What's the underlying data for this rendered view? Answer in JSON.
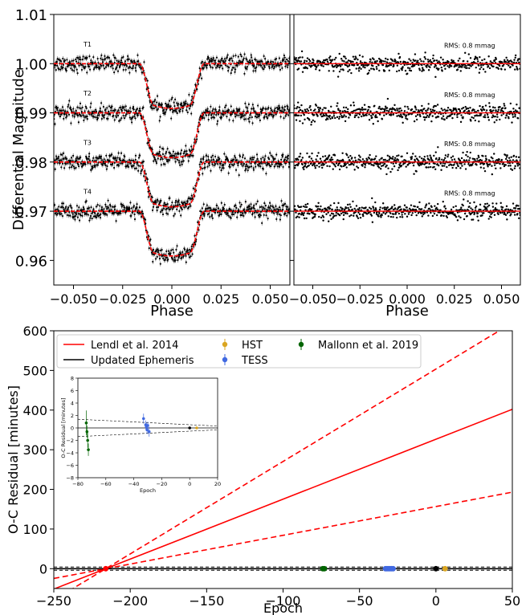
{
  "chart_data": [
    {
      "id": "lc",
      "type": "scatter",
      "xlabel": "Phase",
      "ylabel": "Differential Magnitude",
      "xlim": [
        -0.06,
        0.06
      ],
      "ylim": [
        0.955,
        1.01
      ],
      "x_ticks": [
        -0.05,
        -0.025,
        0.0,
        0.025,
        0.05
      ],
      "x_tick_labels": [
        "−0.050",
        "−0.025",
        "0.000",
        "0.025",
        "0.050"
      ],
      "y_ticks": [
        0.96,
        0.97,
        0.98,
        0.99,
        1.0,
        1.01
      ],
      "y_tick_labels": [
        "0.96",
        "0.97",
        "0.98",
        "0.99",
        "1.00",
        "1.01"
      ],
      "transit": {
        "t1": -0.0165,
        "t2": -0.009,
        "t3": 0.009,
        "t4": 0.0165,
        "depth": 0.0085,
        "noise": 0.0008
      },
      "series": [
        {
          "name": "T1",
          "offset": 1.0
        },
        {
          "name": "T2",
          "offset": 0.99
        },
        {
          "name": "T3",
          "offset": 0.98
        },
        {
          "name": "T4",
          "offset": 0.97
        }
      ],
      "point_color": "#000000",
      "model_color": "#ff0000"
    },
    {
      "id": "resid",
      "type": "scatter",
      "xlabel": "Phase",
      "xlim": [
        -0.06,
        0.06
      ],
      "ylim": [
        0.955,
        1.01
      ],
      "x_ticks": [
        -0.05,
        -0.025,
        0.0,
        0.025,
        0.05
      ],
      "x_tick_labels": [
        "−0.050",
        "−0.025",
        "0.000",
        "0.025",
        "0.050"
      ],
      "series": [
        {
          "name": "RMS: 0.8 mmag",
          "offset": 1.0
        },
        {
          "name": "RMS: 0.8 mmag",
          "offset": 0.99
        },
        {
          "name": "RMS: 0.8 mmag",
          "offset": 0.98
        },
        {
          "name": "RMS: 0.8 mmag",
          "offset": 0.97
        }
      ]
    },
    {
      "id": "oc",
      "type": "line",
      "xlabel": "Epoch",
      "ylabel": "O-C Residual [minutes]",
      "xlim": [
        -250,
        50
      ],
      "ylim": [
        -50,
        600
      ],
      "x_ticks": [
        -250,
        -200,
        -150,
        -100,
        -50,
        0,
        50
      ],
      "x_tick_labels": [
        "−250",
        "−200",
        "−150",
        "−100",
        "−50",
        "0",
        "50"
      ],
      "y_ticks": [
        0,
        100,
        200,
        300,
        400,
        500,
        600
      ],
      "y_tick_labels": [
        "0",
        "100",
        "200",
        "300",
        "400",
        "500",
        "600"
      ],
      "lines": [
        {
          "name": "Lendl et al. 2014",
          "color": "#ff0000",
          "style": "solid",
          "points": [
            [
              -216,
              0
            ],
            [
              50,
              402
            ]
          ]
        },
        {
          "name": "",
          "color": "#ff0000",
          "style": "dashed",
          "points": [
            [
              -216,
              0
            ],
            [
              50,
              620
            ]
          ]
        },
        {
          "name": "",
          "color": "#ff0000",
          "style": "dashed",
          "points": [
            [
              -216,
              0
            ],
            [
              50,
              193
            ]
          ]
        },
        {
          "name": "Updated Ephemeris",
          "color": "#000000",
          "style": "solid",
          "points": [
            [
              -250,
              0
            ],
            [
              50,
              0
            ]
          ]
        }
      ],
      "points": [
        {
          "name": "HST",
          "color": "#daa520",
          "x": [
            6
          ],
          "y": [
            0
          ]
        },
        {
          "name": "TESS",
          "color": "#4169e1",
          "x": [
            -33,
            -32,
            -31,
            -30,
            -29,
            -28
          ],
          "y": [
            0,
            0,
            0,
            0,
            0,
            0
          ]
        },
        {
          "name": "Mallonn et al. 2019",
          "color": "#006400",
          "x": [
            -74,
            -73
          ],
          "y": [
            0,
            0
          ]
        },
        {
          "name": "",
          "color": "#000000",
          "x": [
            0
          ],
          "y": [
            0
          ]
        },
        {
          "name": "",
          "color": "#ff0000",
          "x": [
            -216
          ],
          "y": [
            0
          ]
        }
      ],
      "legend": {
        "placement": "top-left",
        "entries": [
          {
            "label": "Lendl et al. 2014",
            "kind": "line",
            "color": "#ff0000"
          },
          {
            "label": "Updated Ephemeris",
            "kind": "line",
            "color": "#000000"
          },
          {
            "label": "HST",
            "kind": "marker",
            "color": "#daa520"
          },
          {
            "label": "TESS",
            "kind": "marker",
            "color": "#4169e1"
          },
          {
            "label": "Mallonn et al. 2019",
            "kind": "marker",
            "color": "#006400"
          }
        ]
      }
    },
    {
      "id": "inset",
      "type": "scatter",
      "xlabel": "Epoch",
      "ylabel": "O-C Residual [minutes]",
      "xlim": [
        -80,
        20
      ],
      "ylim": [
        -8,
        8
      ],
      "x_ticks": [
        -80,
        -60,
        -40,
        -20,
        0,
        20
      ],
      "x_tick_labels": [
        "−80",
        "−60",
        "−40",
        "−20",
        "0",
        "20"
      ],
      "y_ticks": [
        -8,
        -6,
        -4,
        -2,
        0,
        2,
        4,
        6,
        8
      ],
      "y_tick_labels": [
        "−8",
        "−6",
        "−4",
        "−2",
        "0",
        "2",
        "4",
        "6",
        "8"
      ],
      "envelope": [
        [
          -80,
          1.4
        ],
        [
          20,
          0.3
        ]
      ],
      "points": [
        {
          "name": "Mallonn et al. 2019",
          "color": "#006400",
          "x": [
            -74,
            -73.5,
            -73,
            -72.5
          ],
          "y": [
            0.8,
            -0.6,
            -2.0,
            -3.5
          ],
          "err": [
            2.0,
            1.0,
            1.2,
            1.0
          ]
        },
        {
          "name": "TESS",
          "color": "#4169e1",
          "x": [
            -33,
            -31.5,
            -31,
            -30.5,
            -30,
            -29
          ],
          "y": [
            1.5,
            0.5,
            0.2,
            -0.3,
            0.4,
            -0.6
          ],
          "err": [
            0.8,
            0.7,
            0.6,
            0.7,
            0.6,
            0.8
          ]
        },
        {
          "name": "",
          "color": "#000000",
          "x": [
            0
          ],
          "y": [
            0
          ],
          "err": [
            0.1
          ]
        },
        {
          "name": "HST",
          "color": "#daa520",
          "x": [
            5
          ],
          "y": [
            0
          ],
          "err": [
            0.1
          ]
        }
      ]
    }
  ]
}
